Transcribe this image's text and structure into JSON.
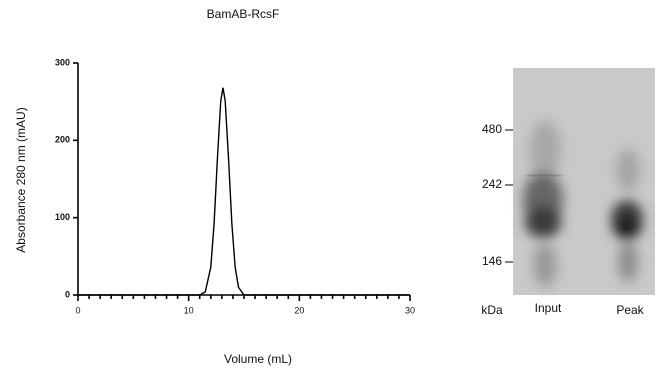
{
  "chart_data": {
    "type": "line",
    "title": "BamAB-RcsF",
    "x_label": "Volume (mL)",
    "y_label": "Absorbance 280 nm (mAU)",
    "x": [
      0,
      10,
      11,
      11.5,
      12,
      12.3,
      12.6,
      12.9,
      13.1,
      13.3,
      13.6,
      13.9,
      14.2,
      14.5,
      15,
      16,
      30
    ],
    "series": [
      {
        "name": "BamAB-RcsF",
        "color": "#000000",
        "values": [
          0,
          0,
          0,
          4,
          36,
          93,
          177,
          251,
          268,
          251,
          177,
          93,
          36,
          10,
          0,
          0,
          0
        ]
      }
    ],
    "xlim": [
      0,
      30
    ],
    "xticks": [
      0,
      10,
      20,
      30
    ],
    "ylim": [
      0,
      300
    ],
    "yticks": [
      0,
      100,
      200,
      300
    ],
    "grid": false
  },
  "gel": {
    "unit_label": "kDa",
    "markers": [
      "480",
      "242",
      "146"
    ],
    "lanes": [
      "Input",
      "Peak"
    ]
  }
}
